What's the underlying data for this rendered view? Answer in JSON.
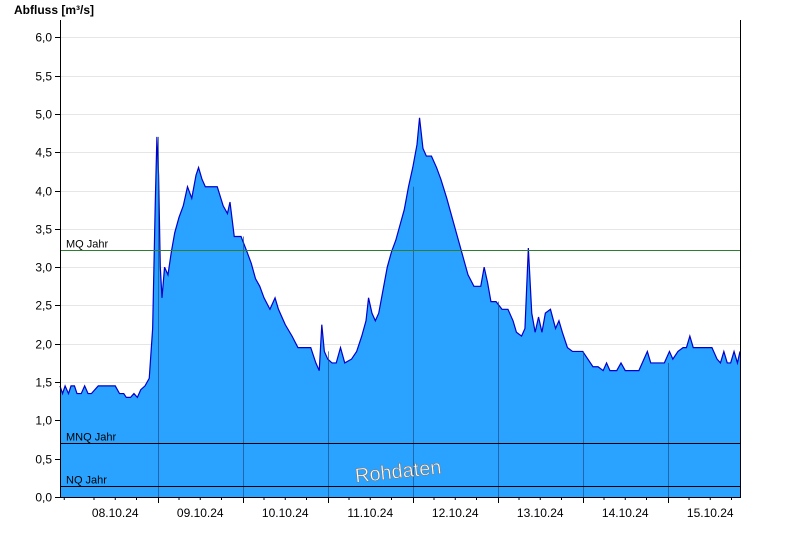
{
  "chart_data": {
    "type": "area",
    "ylabel": "Abfluss [m³/s]",
    "ylim": [
      0,
      6.2
    ],
    "yticks": [
      "0,0",
      "0,5",
      "1,0",
      "1,5",
      "2,0",
      "2,5",
      "3,0",
      "3,5",
      "4,0",
      "4,5",
      "5,0",
      "5,5",
      "6,0"
    ],
    "ytick_values": [
      0,
      0.5,
      1.0,
      1.5,
      2.0,
      2.5,
      3.0,
      3.5,
      4.0,
      4.5,
      5.0,
      5.5,
      6.0
    ],
    "xlabels": [
      "08.10.24",
      "09.10.24",
      "10.10.24",
      "11.10.24",
      "12.10.24",
      "13.10.24",
      "14.10.24",
      "15.10.24"
    ],
    "x_unit": "days since 08.10.24 00:00",
    "xlim": [
      -0.15,
      7.85
    ],
    "grid": true,
    "fill_color": "#29a3ff",
    "line_color": "#0000cc",
    "reference_lines": [
      {
        "label": "MQ Jahr",
        "value": 3.22,
        "color": "#2e7d32"
      },
      {
        "label": "MNQ Jahr",
        "value": 0.7,
        "color": "#000000"
      },
      {
        "label": "NQ Jahr",
        "value": 0.15,
        "color": "#000000"
      }
    ],
    "watermark": "Rohdaten",
    "series": [
      {
        "values": [
          [
            -0.15,
            1.45
          ],
          [
            -0.12,
            1.35
          ],
          [
            -0.09,
            1.45
          ],
          [
            -0.05,
            1.35
          ],
          [
            -0.02,
            1.45
          ],
          [
            0.02,
            1.45
          ],
          [
            0.05,
            1.35
          ],
          [
            0.1,
            1.35
          ],
          [
            0.14,
            1.45
          ],
          [
            0.18,
            1.35
          ],
          [
            0.22,
            1.35
          ],
          [
            0.3,
            1.45
          ],
          [
            0.4,
            1.45
          ],
          [
            0.5,
            1.45
          ],
          [
            0.55,
            1.35
          ],
          [
            0.6,
            1.35
          ],
          [
            0.63,
            1.3
          ],
          [
            0.68,
            1.3
          ],
          [
            0.72,
            1.35
          ],
          [
            0.76,
            1.3
          ],
          [
            0.8,
            1.4
          ],
          [
            0.85,
            1.45
          ],
          [
            0.9,
            1.55
          ],
          [
            0.94,
            2.2
          ],
          [
            0.97,
            3.8
          ],
          [
            0.99,
            4.7
          ],
          [
            1.01,
            4.2
          ],
          [
            1.03,
            3.0
          ],
          [
            1.05,
            2.6
          ],
          [
            1.08,
            3.0
          ],
          [
            1.12,
            2.9
          ],
          [
            1.16,
            3.2
          ],
          [
            1.2,
            3.45
          ],
          [
            1.25,
            3.65
          ],
          [
            1.3,
            3.8
          ],
          [
            1.35,
            4.05
          ],
          [
            1.4,
            3.9
          ],
          [
            1.45,
            4.2
          ],
          [
            1.48,
            4.3
          ],
          [
            1.52,
            4.15
          ],
          [
            1.56,
            4.05
          ],
          [
            1.62,
            4.05
          ],
          [
            1.7,
            4.05
          ],
          [
            1.77,
            3.8
          ],
          [
            1.82,
            3.7
          ],
          [
            1.85,
            3.85
          ],
          [
            1.9,
            3.4
          ],
          [
            1.98,
            3.4
          ],
          [
            2.05,
            3.2
          ],
          [
            2.1,
            3.05
          ],
          [
            2.15,
            2.85
          ],
          [
            2.2,
            2.75
          ],
          [
            2.25,
            2.6
          ],
          [
            2.32,
            2.45
          ],
          [
            2.38,
            2.6
          ],
          [
            2.42,
            2.45
          ],
          [
            2.5,
            2.25
          ],
          [
            2.58,
            2.1
          ],
          [
            2.65,
            1.95
          ],
          [
            2.72,
            1.95
          ],
          [
            2.8,
            1.95
          ],
          [
            2.86,
            1.75
          ],
          [
            2.9,
            1.65
          ],
          [
            2.93,
            2.25
          ],
          [
            2.96,
            1.9
          ],
          [
            3.0,
            1.8
          ],
          [
            3.05,
            1.75
          ],
          [
            3.1,
            1.75
          ],
          [
            3.15,
            1.95
          ],
          [
            3.2,
            1.75
          ],
          [
            3.28,
            1.8
          ],
          [
            3.34,
            1.9
          ],
          [
            3.4,
            2.1
          ],
          [
            3.45,
            2.3
          ],
          [
            3.48,
            2.6
          ],
          [
            3.52,
            2.4
          ],
          [
            3.56,
            2.3
          ],
          [
            3.6,
            2.4
          ],
          [
            3.65,
            2.7
          ],
          [
            3.7,
            3.0
          ],
          [
            3.75,
            3.2
          ],
          [
            3.8,
            3.35
          ],
          [
            3.85,
            3.55
          ],
          [
            3.9,
            3.75
          ],
          [
            3.95,
            4.05
          ],
          [
            4.0,
            4.3
          ],
          [
            4.05,
            4.6
          ],
          [
            4.08,
            4.95
          ],
          [
            4.12,
            4.55
          ],
          [
            4.16,
            4.45
          ],
          [
            4.22,
            4.45
          ],
          [
            4.28,
            4.3
          ],
          [
            4.33,
            4.15
          ],
          [
            4.4,
            3.9
          ],
          [
            4.45,
            3.7
          ],
          [
            4.5,
            3.5
          ],
          [
            4.55,
            3.3
          ],
          [
            4.6,
            3.1
          ],
          [
            4.65,
            2.9
          ],
          [
            4.72,
            2.75
          ],
          [
            4.8,
            2.75
          ],
          [
            4.84,
            3.0
          ],
          [
            4.88,
            2.8
          ],
          [
            4.92,
            2.55
          ],
          [
            4.98,
            2.55
          ],
          [
            5.05,
            2.45
          ],
          [
            5.12,
            2.45
          ],
          [
            5.18,
            2.3
          ],
          [
            5.22,
            2.15
          ],
          [
            5.28,
            2.1
          ],
          [
            5.32,
            2.2
          ],
          [
            5.36,
            3.25
          ],
          [
            5.4,
            2.4
          ],
          [
            5.44,
            2.15
          ],
          [
            5.48,
            2.35
          ],
          [
            5.52,
            2.15
          ],
          [
            5.56,
            2.4
          ],
          [
            5.62,
            2.45
          ],
          [
            5.68,
            2.2
          ],
          [
            5.72,
            2.3
          ],
          [
            5.76,
            2.15
          ],
          [
            5.82,
            1.95
          ],
          [
            5.88,
            1.9
          ],
          [
            5.95,
            1.9
          ],
          [
            6.0,
            1.9
          ],
          [
            6.06,
            1.8
          ],
          [
            6.12,
            1.7
          ],
          [
            6.18,
            1.7
          ],
          [
            6.24,
            1.65
          ],
          [
            6.28,
            1.75
          ],
          [
            6.32,
            1.65
          ],
          [
            6.4,
            1.65
          ],
          [
            6.45,
            1.75
          ],
          [
            6.5,
            1.65
          ],
          [
            6.58,
            1.65
          ],
          [
            6.66,
            1.65
          ],
          [
            6.72,
            1.8
          ],
          [
            6.76,
            1.9
          ],
          [
            6.8,
            1.75
          ],
          [
            6.88,
            1.75
          ],
          [
            6.96,
            1.75
          ],
          [
            7.02,
            1.9
          ],
          [
            7.06,
            1.8
          ],
          [
            7.12,
            1.9
          ],
          [
            7.18,
            1.95
          ],
          [
            7.22,
            1.95
          ],
          [
            7.26,
            2.1
          ],
          [
            7.3,
            1.95
          ],
          [
            7.38,
            1.95
          ],
          [
            7.46,
            1.95
          ],
          [
            7.52,
            1.95
          ],
          [
            7.58,
            1.8
          ],
          [
            7.62,
            1.75
          ],
          [
            7.66,
            1.9
          ],
          [
            7.7,
            1.75
          ],
          [
            7.74,
            1.75
          ],
          [
            7.78,
            1.9
          ],
          [
            7.82,
            1.75
          ],
          [
            7.85,
            1.9
          ]
        ]
      }
    ]
  }
}
